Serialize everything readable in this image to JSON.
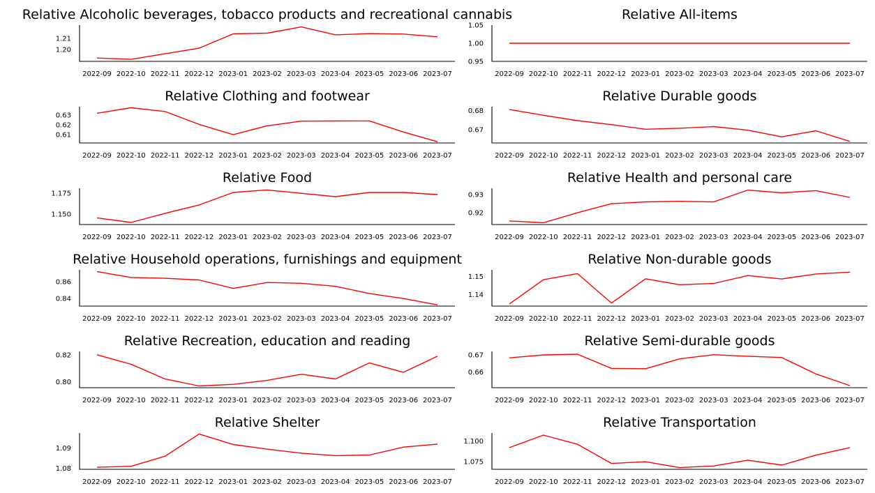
{
  "line_color": "#ff0000",
  "chart_data": [
    {
      "type": "line",
      "title": "Relative Alcoholic beverages, tobacco products and recreational cannabis",
      "x": [
        "2022-09",
        "2022-10",
        "2022-11",
        "2022-12",
        "2023-01",
        "2023-02",
        "2023-03",
        "2023-04",
        "2023-05",
        "2023-06",
        "2023-07"
      ],
      "values": [
        1.1925,
        1.1913,
        1.1963,
        1.2013,
        1.2142,
        1.2148,
        1.2204,
        1.2133,
        1.2144,
        1.214,
        1.2115
      ],
      "yticks": [
        "1.20",
        "1.21"
      ],
      "ytick_values": [
        1.2,
        1.21
      ],
      "ylim": [
        1.1895,
        1.222
      ],
      "grid": false
    },
    {
      "type": "line",
      "title": "Relative All-items",
      "x": [
        "2022-09",
        "2022-10",
        "2022-11",
        "2022-12",
        "2023-01",
        "2023-02",
        "2023-03",
        "2023-04",
        "2023-05",
        "2023-06",
        "2023-07"
      ],
      "values": [
        1.0,
        1.0,
        1.0,
        1.0,
        1.0,
        1.0,
        1.0,
        1.0,
        1.0,
        1.0,
        1.0
      ],
      "yticks": [
        "0.95",
        "1.00",
        "1.05"
      ],
      "ytick_values": [
        0.95,
        1.0,
        1.05
      ],
      "ylim": [
        0.95,
        1.05
      ],
      "grid": false
    },
    {
      "type": "line",
      "title": "Relative Clothing and footwear",
      "x": [
        "2022-09",
        "2022-10",
        "2022-11",
        "2022-12",
        "2023-01",
        "2023-02",
        "2023-03",
        "2023-04",
        "2023-05",
        "2023-06",
        "2023-07"
      ],
      "values": [
        0.6318,
        0.6374,
        0.6336,
        0.6204,
        0.61,
        0.619,
        0.6238,
        0.6239,
        0.624,
        0.6127,
        0.6027
      ],
      "yticks": [
        "0.61",
        "0.62",
        "0.63"
      ],
      "ytick_values": [
        0.61,
        0.62,
        0.63
      ],
      "ylim": [
        0.6015,
        0.6385
      ],
      "grid": false
    },
    {
      "type": "line",
      "title": "Relative Durable goods",
      "x": [
        "2022-09",
        "2022-10",
        "2022-11",
        "2022-12",
        "2023-01",
        "2023-02",
        "2023-03",
        "2023-04",
        "2023-05",
        "2023-06",
        "2023-07"
      ],
      "values": [
        0.6805,
        0.6775,
        0.6747,
        0.6726,
        0.6702,
        0.6707,
        0.6716,
        0.6697,
        0.6662,
        0.6694,
        0.6638
      ],
      "yticks": [
        "0.67",
        "0.68"
      ],
      "ytick_values": [
        0.67,
        0.68
      ],
      "ylim": [
        0.663,
        0.682
      ],
      "grid": false
    },
    {
      "type": "line",
      "title": "Relative Food",
      "x": [
        "2022-09",
        "2022-10",
        "2022-11",
        "2022-12",
        "2023-01",
        "2023-02",
        "2023-03",
        "2023-04",
        "2023-05",
        "2023-06",
        "2023-07"
      ],
      "values": [
        1.1455,
        1.14,
        1.151,
        1.161,
        1.176,
        1.179,
        1.175,
        1.171,
        1.176,
        1.176,
        1.1735
      ],
      "yticks": [
        "1.150",
        "1.175"
      ],
      "ytick_values": [
        1.15,
        1.175
      ],
      "ylim": [
        1.1375,
        1.181
      ],
      "grid": false
    },
    {
      "type": "line",
      "title": "Relative Health and personal care",
      "x": [
        "2022-09",
        "2022-10",
        "2022-11",
        "2022-12",
        "2023-01",
        "2023-02",
        "2023-03",
        "2023-04",
        "2023-05",
        "2023-06",
        "2023-07"
      ],
      "values": [
        0.9155,
        0.9145,
        0.92,
        0.925,
        0.926,
        0.9263,
        0.926,
        0.9325,
        0.931,
        0.9322,
        0.9285
      ],
      "yticks": [
        "0.92",
        "0.93"
      ],
      "ytick_values": [
        0.92,
        0.93
      ],
      "ylim": [
        0.9135,
        0.9335
      ],
      "grid": false
    },
    {
      "type": "line",
      "title": "Relative Household operations, furnishings and equipment",
      "x": [
        "2022-09",
        "2022-10",
        "2022-11",
        "2022-12",
        "2023-01",
        "2023-02",
        "2023-03",
        "2023-04",
        "2023-05",
        "2023-06",
        "2023-07"
      ],
      "values": [
        0.872,
        0.865,
        0.864,
        0.862,
        0.852,
        0.859,
        0.858,
        0.8545,
        0.846,
        0.84,
        0.8325
      ],
      "yticks": [
        "0.84",
        "0.86"
      ],
      "ytick_values": [
        0.84,
        0.86
      ],
      "ylim": [
        0.831,
        0.874
      ],
      "grid": false
    },
    {
      "type": "line",
      "title": "Relative Non-durable goods",
      "x": [
        "2022-09",
        "2022-10",
        "2022-11",
        "2022-12",
        "2023-01",
        "2023-02",
        "2023-03",
        "2023-04",
        "2023-05",
        "2023-06",
        "2023-07"
      ],
      "values": [
        1.1347,
        1.1483,
        1.1517,
        1.1352,
        1.1488,
        1.1455,
        1.1462,
        1.1506,
        1.1487,
        1.1515,
        1.1525
      ],
      "yticks": [
        "1.14",
        "1.15"
      ],
      "ytick_values": [
        1.14,
        1.15
      ],
      "ylim": [
        1.1335,
        1.1538
      ],
      "grid": false
    },
    {
      "type": "line",
      "title": "Relative Recreation, education and reading",
      "x": [
        "2022-09",
        "2022-10",
        "2022-11",
        "2022-12",
        "2023-01",
        "2023-02",
        "2023-03",
        "2023-04",
        "2023-05",
        "2023-06",
        "2023-07"
      ],
      "values": [
        0.82,
        0.813,
        0.802,
        0.7968,
        0.798,
        0.801,
        0.8055,
        0.802,
        0.814,
        0.807,
        0.819
      ],
      "yticks": [
        "0.80",
        "0.82"
      ],
      "ytick_values": [
        0.8,
        0.82
      ],
      "ylim": [
        0.7955,
        0.8225
      ],
      "grid": false
    },
    {
      "type": "line",
      "title": "Relative Semi-durable goods",
      "x": [
        "2022-09",
        "2022-10",
        "2022-11",
        "2022-12",
        "2023-01",
        "2023-02",
        "2023-03",
        "2023-04",
        "2023-05",
        "2023-06",
        "2023-07"
      ],
      "values": [
        0.6683,
        0.67,
        0.6704,
        0.6622,
        0.662,
        0.6677,
        0.6701,
        0.6692,
        0.6685,
        0.659,
        0.6522
      ],
      "yticks": [
        "0.66",
        "0.67"
      ],
      "ytick_values": [
        0.66,
        0.67
      ],
      "ylim": [
        0.651,
        0.672
      ],
      "grid": false
    },
    {
      "type": "line",
      "title": "Relative Shelter",
      "x": [
        "2022-09",
        "2022-10",
        "2022-11",
        "2022-12",
        "2023-01",
        "2023-02",
        "2023-03",
        "2023-04",
        "2023-05",
        "2023-06",
        "2023-07"
      ],
      "values": [
        1.0805,
        1.081,
        1.086,
        1.097,
        1.0918,
        1.0895,
        1.0875,
        1.0863,
        1.0866,
        1.0905,
        1.092
      ],
      "yticks": [
        "1.08",
        "1.09"
      ],
      "ytick_values": [
        1.08,
        1.09
      ],
      "ylim": [
        1.0795,
        1.0975
      ],
      "grid": false
    },
    {
      "type": "line",
      "title": "Relative Transportation",
      "x": [
        "2022-09",
        "2022-10",
        "2022-11",
        "2022-12",
        "2023-01",
        "2023-02",
        "2023-03",
        "2023-04",
        "2023-05",
        "2023-06",
        "2023-07"
      ],
      "values": [
        1.092,
        1.107,
        1.096,
        1.073,
        1.075,
        1.068,
        1.07,
        1.077,
        1.071,
        1.083,
        1.092
      ],
      "yticks": [
        "1.075",
        "1.100"
      ],
      "ytick_values": [
        1.075,
        1.1
      ],
      "ylim": [
        1.066,
        1.1095
      ],
      "grid": false
    }
  ]
}
